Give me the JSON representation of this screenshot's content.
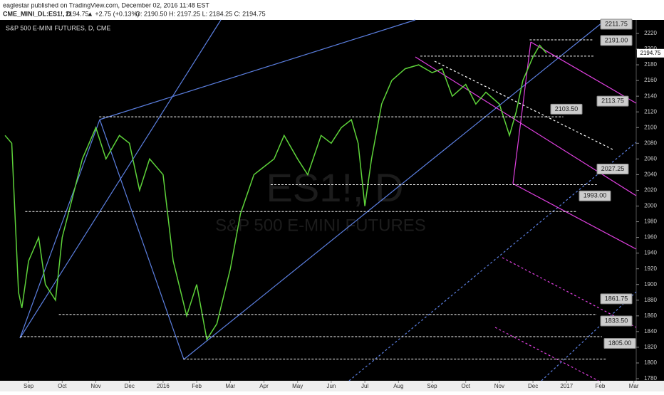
{
  "header": {
    "line1": "eaglestar published on TradingView.com, December 02, 2016 11:48 EST",
    "symbol": "CME_MINI_DL:ES1!, D",
    "last": "2194.75",
    "change": "▲ +2.75 (+0.13%)",
    "ohlc": "O: 2190.50 H: 2197.25 L: 2184.25 C: 2194.75"
  },
  "chart_data": {
    "type": "line",
    "title": "S&P 500 E-MINI FUTURES, D, CME",
    "watermark": "ES1!, D",
    "watermark_sub": "S&P 500 E-MINI FUTURES",
    "color": "#5ed33a",
    "x": [
      -0.7,
      -0.5,
      -0.3,
      -0.2,
      0,
      0.3,
      0.5,
      0.8,
      1.0,
      1.3,
      1.6,
      2.0,
      2.3,
      2.7,
      3.0,
      3.3,
      3.6,
      4.0,
      4.3,
      4.7,
      5.0,
      5.3,
      5.6,
      6.0,
      6.3,
      6.7,
      7.0,
      7.3,
      7.6,
      8.0,
      8.3,
      8.7,
      9.0,
      9.3,
      9.6,
      9.8,
      10.0,
      10.2,
      10.5,
      10.8,
      11.2,
      11.6,
      12.0,
      12.3,
      12.6,
      13.0,
      13.3,
      13.6,
      14.0,
      14.3,
      14.5,
      14.7,
      15.0,
      15.2,
      15.4
    ],
    "values": [
      2090,
      2080,
      1890,
      1870,
      1930,
      1960,
      1900,
      1880,
      1960,
      2010,
      2060,
      2100,
      2060,
      2090,
      2080,
      2020,
      2060,
      2040,
      1930,
      1860,
      1900,
      1830,
      1850,
      1920,
      1990,
      2040,
      2050,
      2060,
      2090,
      2060,
      2040,
      2090,
      2080,
      2100,
      2110,
      2080,
      2000,
      2060,
      2130,
      2160,
      2175,
      2180,
      2170,
      2175,
      2140,
      2155,
      2130,
      2145,
      2130,
      2090,
      2120,
      2160,
      2190,
      2205,
      2194.75
    ],
    "last_label": "2194.75",
    "xlim": [
      -0.85,
      18.07
    ],
    "ylim": [
      1777.3,
      2237.2
    ],
    "xticks": [
      {
        "value": 0,
        "label": "Sep"
      },
      {
        "value": 1,
        "label": "Oct"
      },
      {
        "value": 2,
        "label": "Nov"
      },
      {
        "value": 3,
        "label": "Dec"
      },
      {
        "value": 4,
        "label": "2016"
      },
      {
        "value": 5,
        "label": "Feb"
      },
      {
        "value": 6,
        "label": "Mar"
      },
      {
        "value": 7,
        "label": "Apr"
      },
      {
        "value": 8,
        "label": "May"
      },
      {
        "value": 9,
        "label": "Jun"
      },
      {
        "value": 10,
        "label": "Jul"
      },
      {
        "value": 11,
        "label": "Aug"
      },
      {
        "value": 12,
        "label": "Sep"
      },
      {
        "value": 13,
        "label": "Oct"
      },
      {
        "value": 14,
        "label": "Nov"
      },
      {
        "value": 15,
        "label": "Dec"
      },
      {
        "value": 16,
        "label": "2017"
      },
      {
        "value": 17,
        "label": "Feb"
      },
      {
        "value": 18,
        "label": "Mar"
      }
    ],
    "yticks": [
      1780,
      1800,
      1820,
      1840,
      1860,
      1880,
      1900,
      1920,
      1940,
      1960,
      1980,
      2000,
      2020,
      2040,
      2060,
      2080,
      2100,
      2120,
      2140,
      2160,
      2180,
      2200,
      2220
    ],
    "levels": [
      {
        "value": 2211.75,
        "label": "2211.75",
        "start": 14.9,
        "end": 16.8
      },
      {
        "value": 2191,
        "label": "2191.00",
        "start": 11.65,
        "end": 16.8
      },
      {
        "value": 2113.75,
        "label": "2113.75",
        "start": 2.1,
        "end": 15.9
      },
      {
        "value": 2103.5,
        "label": "2103.50",
        "start": 15.5,
        "end": 15.5
      },
      {
        "value": 2027.25,
        "label": "2027.25",
        "start": 7.2,
        "end": 16.9
      },
      {
        "value": 1993,
        "label": "1993.00",
        "start": -0.1,
        "end": 16.3
      },
      {
        "value": 1861.75,
        "label": "1861.75",
        "start": 0.9,
        "end": 16.9
      },
      {
        "value": 1833.5,
        "label": "1833.50",
        "start": -0.25,
        "end": 17.05
      },
      {
        "value": 1805,
        "label": "1805.00",
        "start": 4.6,
        "end": 17.2
      }
    ]
  }
}
